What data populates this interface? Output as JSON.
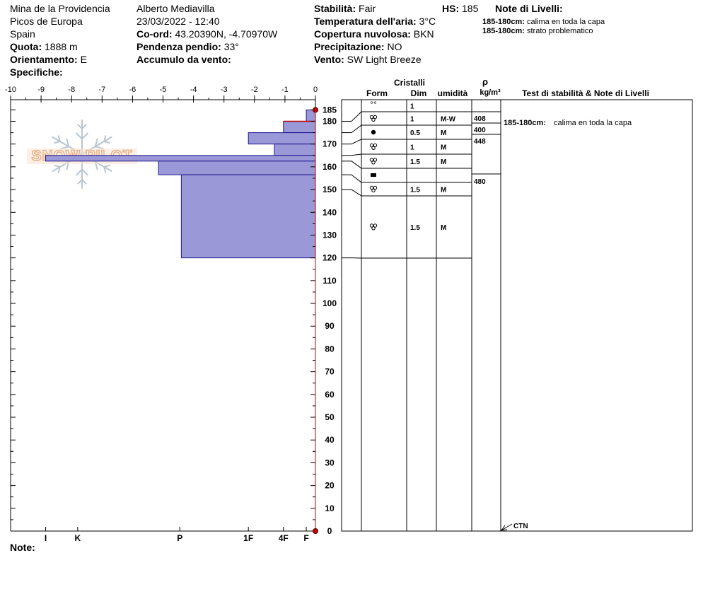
{
  "header": {
    "location": "Mina de la Providencia",
    "range": "Picos de Europa",
    "country": "Spain",
    "elevation_label": "Quota:",
    "elevation_value": "1888 m",
    "aspect_label": "Orientamento:",
    "aspect_value": "E",
    "specifics_label": "Specifiche:",
    "observer": "Alberto Mediavilla",
    "datetime": "23/03/2022 - 12:40",
    "coord_label": "Co-ord:",
    "coord_value": "43.20390N, -4.70970W",
    "slope_label": "Pendenza pendio:",
    "slope_value": "33°",
    "wind_loading_label": "Accumulo da vento:",
    "stability_label": "Stabilità:",
    "stability_value": "Fair",
    "hs_label": "HS:",
    "hs_value": "185",
    "air_temp_label": "Temperatura dell'aria:",
    "air_temp_value": "3°C",
    "cloud_label": "Copertura nuvolosa:",
    "cloud_value": "BKN",
    "precip_label": "Precipitazione:",
    "precip_value": "NO",
    "wind_label": "Vento:",
    "wind_value": "SW Light Breeze",
    "layer_notes_label": "Note di Livelli:",
    "layer_notes": [
      {
        "range": "185-180cm:",
        "text": "calima en toda la capa"
      },
      {
        "range": "185-180cm:",
        "text": "strato problematico"
      }
    ]
  },
  "footer": {
    "note_label": "Note:"
  },
  "watermark": "SNOW PILOT",
  "chart_data": {
    "type": "bar",
    "orientation": "horizontal",
    "title": "",
    "temperature_axis": {
      "ticks": [
        "-10",
        "-9",
        "-8",
        "-7",
        "-6",
        "-5",
        "-4",
        "-3",
        "-2",
        "-1",
        "0"
      ],
      "range": [
        -10,
        0
      ]
    },
    "height_axis": {
      "range": [
        0,
        190
      ],
      "ticks": [
        0,
        10,
        20,
        30,
        40,
        50,
        60,
        70,
        80,
        90,
        100,
        110,
        120,
        130,
        140,
        150,
        160,
        170,
        180,
        185
      ]
    },
    "hardness_scale": [
      {
        "label": "I",
        "value": 8.85
      },
      {
        "label": "K",
        "value": 7.8
      },
      {
        "label": "P",
        "value": 4.45
      },
      {
        "label": "1F",
        "value": 2.2
      },
      {
        "label": "4F",
        "value": 1.05
      },
      {
        "label": "F",
        "value": 0.3
      }
    ],
    "hardness_layers": [
      {
        "top": 185,
        "bottom": 180,
        "hardness": 0.3
      },
      {
        "top": 180,
        "bottom": 175,
        "hardness": 1.05
      },
      {
        "top": 175,
        "bottom": 170,
        "hardness": 2.2
      },
      {
        "top": 170,
        "bottom": 165,
        "hardness": 1.35
      },
      {
        "top": 165,
        "bottom": 162.5,
        "hardness": 8.85
      },
      {
        "top": 162.5,
        "bottom": 156.5,
        "hardness": 5.15
      },
      {
        "top": 156.5,
        "bottom": 120,
        "hardness": 4.4
      }
    ],
    "temperature_points": [
      {
        "height": 185,
        "temp": 0
      },
      {
        "height": 0,
        "temp": 0
      }
    ],
    "table_headers": {
      "crystals": "Cristalli",
      "form": "Form",
      "size": "Dim",
      "moisture": "umidità",
      "rho": "ρ",
      "density_unit": "kg/m³",
      "tests": "Test di stabilità & Note di Livelli"
    },
    "table_rows": [
      {
        "top": 185,
        "bottom": 180,
        "form": "°°",
        "form_type": "pp",
        "size": "1",
        "moisture": ""
      },
      {
        "top": 180,
        "bottom": 175,
        "form": "ꝏ",
        "form_type": "rg",
        "size": "1",
        "moisture": "M-W"
      },
      {
        "top": 175,
        "bottom": 170,
        "form": "●",
        "form_type": "mf",
        "size": "0.5",
        "moisture": "M"
      },
      {
        "top": 170,
        "bottom": 165,
        "form": "ꝏ",
        "form_type": "rg",
        "size": "1",
        "moisture": "M"
      },
      {
        "top": 165,
        "bottom": 162.5,
        "form": "ꝏ",
        "form_type": "rg",
        "size": "1.5",
        "moisture": "M"
      },
      {
        "top": 162.5,
        "bottom": 156.5,
        "form": "■",
        "form_type": "ice",
        "size": "",
        "moisture": ""
      },
      {
        "top": 156.5,
        "bottom": 150,
        "form": "ꝏ",
        "form_type": "rg",
        "size": "1.5",
        "moisture": "M"
      },
      {
        "top": 150,
        "bottom": 120,
        "form": "ꝏ",
        "form_type": "rg",
        "size": "1.5",
        "moisture": "M"
      }
    ],
    "densities": [
      "408",
      "400",
      "448",
      "480"
    ],
    "tests_note": {
      "range": "185-180cm:",
      "text": "calima en toda la capa"
    },
    "ctn_label": "CTN"
  }
}
